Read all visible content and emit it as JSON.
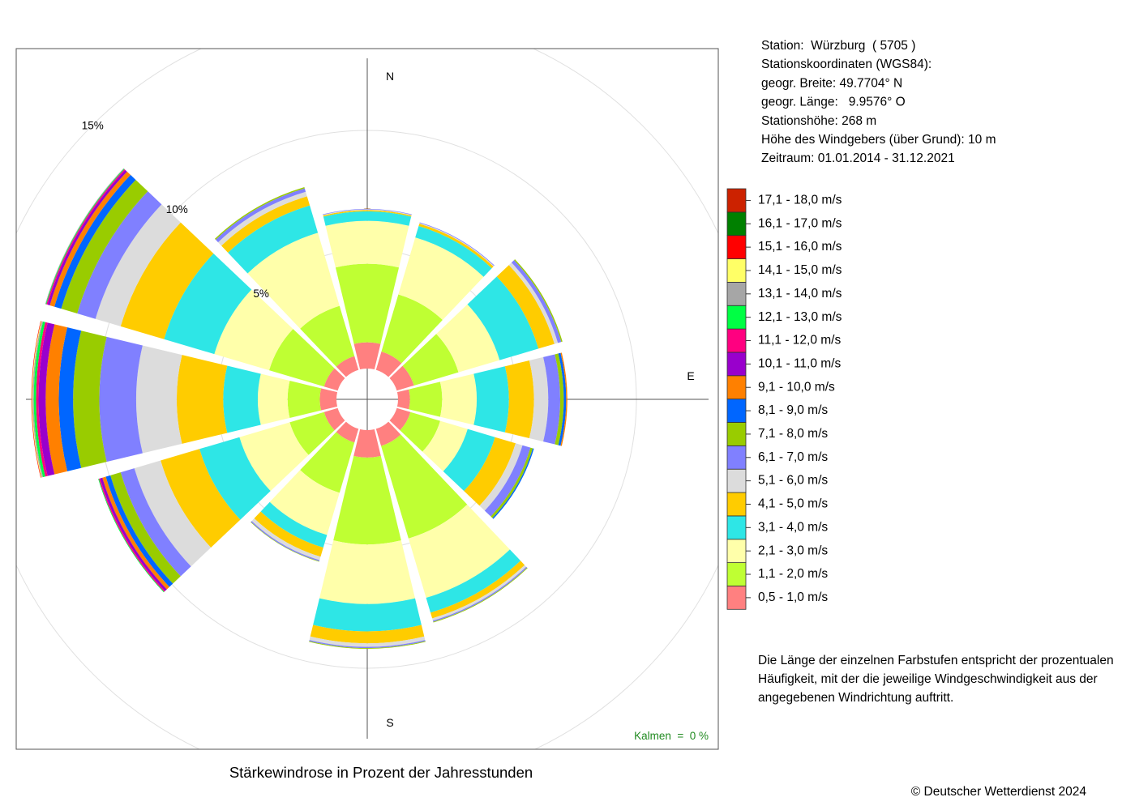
{
  "chart_data": {
    "type": "windrose",
    "title": "Stärkewindrose in Prozent der Jahresstunden",
    "categories": [
      "N",
      null,
      null,
      "E",
      null,
      null,
      "S",
      null,
      null,
      null,
      null,
      null
    ],
    "rlim": [
      0,
      20
    ],
    "rticks": [
      {
        "value": 5,
        "label": "5%"
      },
      {
        "value": 10,
        "label": "10%"
      },
      {
        "value": 15,
        "label": "15%"
      }
    ],
    "grid": true,
    "calms_label": "Kalmen  =  0 %",
    "series": [
      {
        "name": "0,5 - 1,0 m/s",
        "color": "#ff8080",
        "values": [
          1.1,
          0.8,
          0.75,
          0.5,
          0.6,
          0.75,
          1.15,
          0.6,
          0.6,
          0.7,
          0.6,
          0.6
        ]
      },
      {
        "name": "1,1 - 2,0 m/s",
        "color": "#bfff33",
        "values": [
          3.3,
          2.5,
          1.95,
          1.35,
          1.3,
          4.05,
          3.65,
          2.2,
          1.5,
          1.35,
          2.4,
          2.2
        ]
      },
      {
        "name": "2,1 - 3,0 m/s",
        "color": "#ffffaa",
        "values": [
          1.8,
          2.5,
          1.8,
          1.45,
          1.2,
          2.6,
          2.5,
          1.85,
          2.2,
          1.25,
          2.4,
          3.2
        ]
      },
      {
        "name": "3,1 - 4,0 m/s",
        "color": "#2ee6e6",
        "values": [
          0.4,
          0.5,
          1.7,
          1.35,
          1.2,
          0.65,
          1.15,
          0.55,
          1.75,
          1.45,
          2.2,
          1.2
        ]
      },
      {
        "name": "4,1 - 5,0 m/s",
        "color": "#ffcc00",
        "values": [
          0.05,
          0.1,
          0.7,
          1.05,
          0.9,
          0.25,
          0.5,
          0.4,
          1.7,
          1.95,
          1.9,
          0.4
        ]
      },
      {
        "name": "5,1 - 6,0 m/s",
        "color": "#dcdcdc",
        "values": [
          0.03,
          0.03,
          0.15,
          0.6,
          0.3,
          0.1,
          0.15,
          0.15,
          1.15,
          1.7,
          1.1,
          0.2
        ]
      },
      {
        "name": "6,1 - 7,0 m/s",
        "color": "#8080ff",
        "values": [
          0.02,
          0.03,
          0.15,
          0.5,
          0.35,
          0.05,
          0.05,
          0.05,
          0.6,
          1.55,
          0.8,
          0.15
        ]
      },
      {
        "name": "7,1 - 8,0 m/s",
        "color": "#99cc00",
        "values": [
          0,
          0,
          0.05,
          0.15,
          0.1,
          0.03,
          0.03,
          0.02,
          0.45,
          1.1,
          0.7,
          0.05
        ]
      },
      {
        "name": "8,1 - 9,0 m/s",
        "color": "#0066ff",
        "values": [
          0,
          0,
          0,
          0.1,
          0.05,
          0,
          0,
          0,
          0.2,
          0.6,
          0.3,
          0
        ]
      },
      {
        "name": "9,1 - 10,0 m/s",
        "color": "#ff8000",
        "values": [
          0,
          0,
          0,
          0.05,
          0,
          0,
          0,
          0,
          0.15,
          0.55,
          0.2,
          0
        ]
      },
      {
        "name": "10,1 - 11,0 m/s",
        "color": "#9900cc",
        "values": [
          0,
          0,
          0,
          0,
          0,
          0,
          0,
          0,
          0.1,
          0.3,
          0.1,
          0
        ]
      },
      {
        "name": "11,1 - 12,0 m/s",
        "color": "#ff0080",
        "values": [
          0,
          0,
          0,
          0,
          0,
          0,
          0,
          0,
          0.05,
          0.1,
          0.05,
          0
        ]
      },
      {
        "name": "12,1 - 13,0 m/s",
        "color": "#00ff44",
        "values": [
          0,
          0,
          0,
          0,
          0,
          0,
          0,
          0,
          0.03,
          0.1,
          0.03,
          0
        ]
      },
      {
        "name": "13,1 - 14,0 m/s",
        "color": "#a6a6a6",
        "values": [
          0,
          0,
          0,
          0,
          0,
          0,
          0,
          0,
          0,
          0.05,
          0.02,
          0
        ]
      },
      {
        "name": "14,1 - 15,0 m/s",
        "color": "#ffff66",
        "values": [
          0,
          0,
          0,
          0,
          0,
          0,
          0,
          0,
          0,
          0.03,
          0,
          0
        ]
      },
      {
        "name": "15,1 - 16,0 m/s",
        "color": "#ff0000",
        "values": [
          0,
          0,
          0,
          0,
          0,
          0,
          0,
          0,
          0,
          0.02,
          0,
          0
        ]
      },
      {
        "name": "16,1 - 17,0 m/s",
        "color": "#008000",
        "values": [
          0,
          0,
          0,
          0,
          0,
          0,
          0,
          0,
          0,
          0,
          0,
          0
        ]
      },
      {
        "name": "17,1 - 18,0 m/s",
        "color": "#cc2200",
        "values": [
          0,
          0,
          0,
          0,
          0,
          0,
          0,
          0,
          0,
          0,
          0,
          0
        ]
      }
    ]
  },
  "info": [
    "Station:  Würzburg  ( 5705 )",
    "Stationskoordinaten (WGS84):",
    "geogr. Breite: 49.7704° N",
    "geogr. Länge:   9.9576° O",
    "Stationshöhe: 268 m",
    "Höhe des Windgebers (über Grund): 10 m",
    "Zeitraum: 01.01.2014 - 31.12.2021"
  ],
  "note": [
    "Die Länge der einzelnen Farbstufen entspricht der prozentualen",
    "Häufigkeit, mit der die jeweilige Windgeschwindigkeit aus der",
    "angegebenen Windrichtung auftritt."
  ],
  "copyright": "© Deutscher Wetterdienst  2024"
}
